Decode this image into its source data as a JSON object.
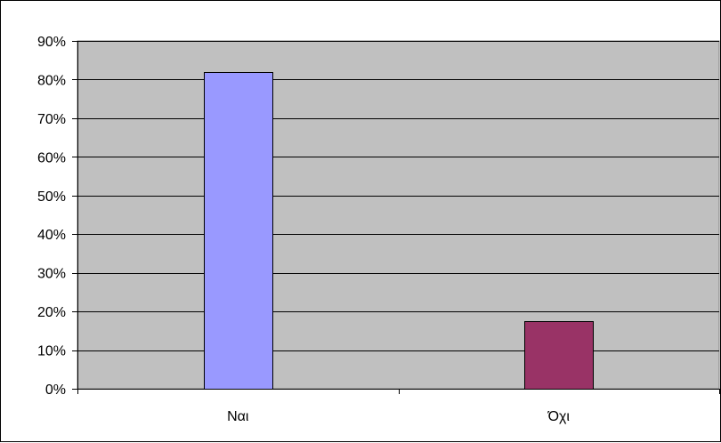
{
  "chart_data": {
    "type": "bar",
    "title": "",
    "xlabel": "",
    "ylabel": "",
    "categories": [
      "Ναι",
      "Όχι"
    ],
    "values": [
      0.82,
      0.175
    ],
    "bar_colors": [
      "#9999ff",
      "#993366"
    ],
    "ylim": [
      0,
      0.9
    ],
    "yticks": [
      0,
      0.1,
      0.2,
      0.3,
      0.4,
      0.5,
      0.6,
      0.7,
      0.8,
      0.9
    ],
    "ytick_labels": [
      "0%",
      "10%",
      "20%",
      "30%",
      "40%",
      "50%",
      "60%",
      "70%",
      "80%",
      "90%"
    ],
    "grid": true,
    "legend": "none",
    "plot_background": "#c0c0c0"
  }
}
